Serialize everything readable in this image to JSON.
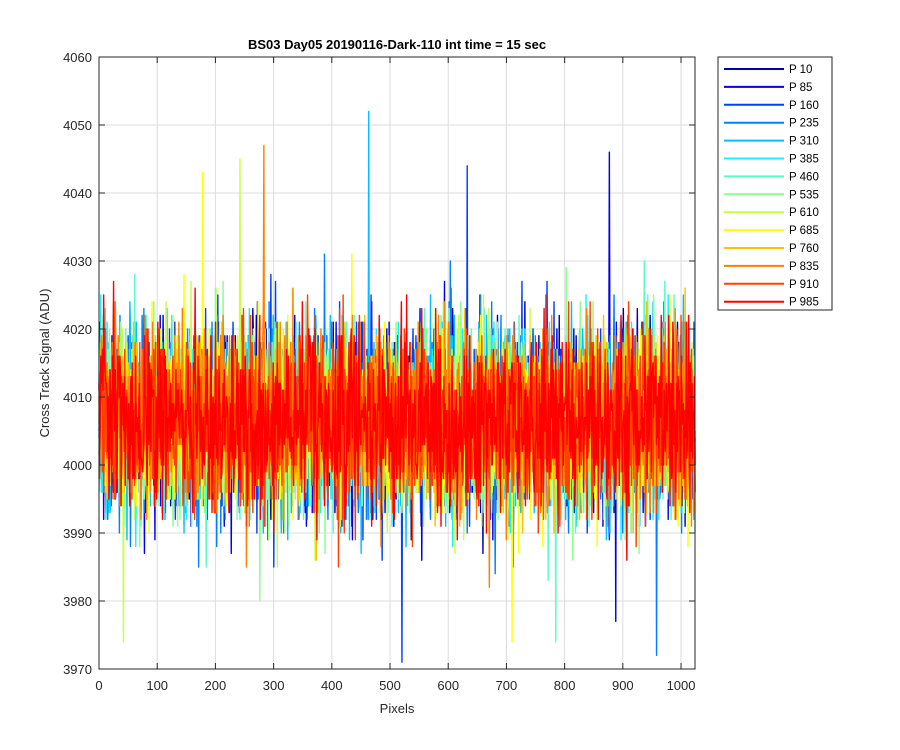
{
  "chart_data": {
    "type": "line",
    "title": "BS03 Day05 20190116-Dark-110 int time = 15 sec",
    "xlabel": "Pixels",
    "ylabel": "Cross Track Signal (ADU)",
    "xlim": [
      0,
      1024
    ],
    "ylim": [
      3970,
      4060
    ],
    "xticks": [
      0,
      100,
      200,
      300,
      400,
      500,
      600,
      700,
      800,
      900,
      1000
    ],
    "yticks": [
      3970,
      3980,
      3990,
      4000,
      4010,
      4020,
      4030,
      4040,
      4050,
      4060
    ],
    "grid": true,
    "legend_position": "outside-top-right",
    "noise_model": {
      "baseline": 4006.5,
      "spread_sigma": 6.5,
      "points_per_series": 1024,
      "min_observed": 3971,
      "max_observed": 4052
    },
    "notable_extremes": [
      {
        "series": "P 310",
        "x": 463,
        "y": 4052
      },
      {
        "series": "P 835",
        "x": 283,
        "y": 4047
      },
      {
        "series": "P 85",
        "x": 876,
        "y": 4046
      },
      {
        "series": "P 610",
        "x": 242,
        "y": 4045
      },
      {
        "series": "P 160",
        "x": 632,
        "y": 4044
      },
      {
        "series": "P 685",
        "x": 178,
        "y": 4043
      },
      {
        "series": "P 160",
        "x": 520,
        "y": 3971
      },
      {
        "series": "P 235",
        "x": 957,
        "y": 3972
      },
      {
        "series": "P 610",
        "x": 42,
        "y": 3974
      },
      {
        "series": "P 685",
        "x": 709,
        "y": 3974
      },
      {
        "series": "P 460",
        "x": 784,
        "y": 3974
      },
      {
        "series": "P 85",
        "x": 887,
        "y": 3977
      }
    ],
    "series": [
      {
        "name": "P 10",
        "color": "#0000a8"
      },
      {
        "name": "P 85",
        "color": "#0000ea"
      },
      {
        "name": "P 160",
        "color": "#0040ff"
      },
      {
        "name": "P 235",
        "color": "#0080ff"
      },
      {
        "name": "P 310",
        "color": "#00c0ff"
      },
      {
        "name": "P 385",
        "color": "#18f0ff"
      },
      {
        "name": "P 460",
        "color": "#55ffc8"
      },
      {
        "name": "P 535",
        "color": "#8cff8c"
      },
      {
        "name": "P 610",
        "color": "#c8ff40"
      },
      {
        "name": "P 685",
        "color": "#ffff00"
      },
      {
        "name": "P 760",
        "color": "#ffc000"
      },
      {
        "name": "P 835",
        "color": "#ff8000"
      },
      {
        "name": "P 910",
        "color": "#ff4000"
      },
      {
        "name": "P 985",
        "color": "#ff0000"
      }
    ]
  }
}
